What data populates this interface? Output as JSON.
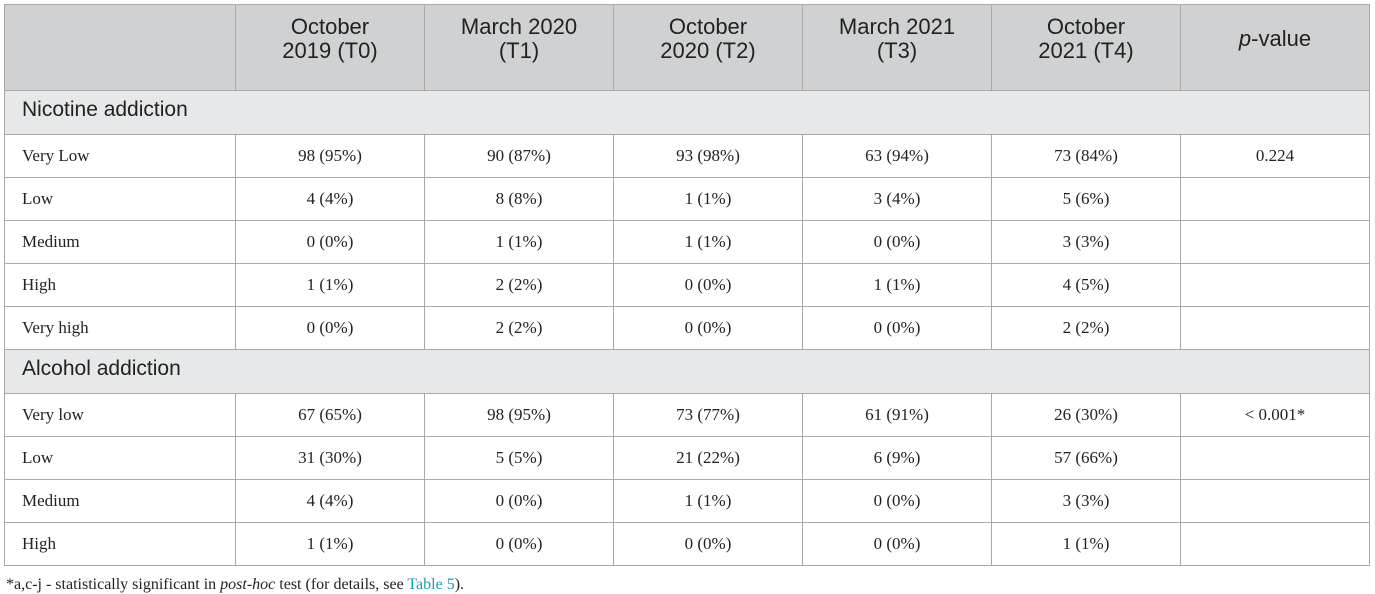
{
  "table": {
    "headers": [
      {
        "line1": "",
        "line2": ""
      },
      {
        "line1": "October",
        "line2": "2019 (T0)"
      },
      {
        "line1": "March 2020",
        "line2": "(T1)"
      },
      {
        "line1": "October",
        "line2": "2020 (T2)"
      },
      {
        "line1": "March 2021",
        "line2": "(T3)"
      },
      {
        "line1": "October",
        "line2": "2021 (T4)"
      }
    ],
    "pvalue_header": {
      "italic": "p",
      "rest": "-value"
    },
    "sections": [
      {
        "title": "Nicotine addiction",
        "rows": [
          {
            "label": "Very Low",
            "values": [
              "98 (95%)",
              "90 (87%)",
              "93 (98%)",
              "63 (94%)",
              "73 (84%)"
            ],
            "p": "0.224"
          },
          {
            "label": "Low",
            "values": [
              "4 (4%)",
              "8 (8%)",
              "1 (1%)",
              "3 (4%)",
              "5 (6%)"
            ],
            "p": ""
          },
          {
            "label": "Medium",
            "values": [
              "0 (0%)",
              "1 (1%)",
              "1 (1%)",
              "0 (0%)",
              "3 (3%)"
            ],
            "p": ""
          },
          {
            "label": "High",
            "values": [
              "1 (1%)",
              "2 (2%)",
              "0 (0%)",
              "1 (1%)",
              "4 (5%)"
            ],
            "p": ""
          },
          {
            "label": "Very high",
            "values": [
              "0 (0%)",
              "2 (2%)",
              "0 (0%)",
              "0 (0%)",
              "2 (2%)"
            ],
            "p": ""
          }
        ]
      },
      {
        "title": "Alcohol addiction",
        "rows": [
          {
            "label": "Very low",
            "values": [
              "67 (65%)",
              "98 (95%)",
              "73 (77%)",
              "61 (91%)",
              "26 (30%)"
            ],
            "p": "< 0.001*"
          },
          {
            "label": "Low",
            "values": [
              "31 (30%)",
              "5 (5%)",
              "21 (22%)",
              "6 (9%)",
              "57 (66%)"
            ],
            "p": ""
          },
          {
            "label": "Medium",
            "values": [
              "4 (4%)",
              "0 (0%)",
              "1 (1%)",
              "0 (0%)",
              "3 (3%)"
            ],
            "p": ""
          },
          {
            "label": "High",
            "values": [
              "1 (1%)",
              "0 (0%)",
              "0 (0%)",
              "0 (0%)",
              "1 (1%)"
            ],
            "p": ""
          }
        ]
      }
    ]
  },
  "footnote": {
    "prefix": "*a,c-j - statistically significant in ",
    "italic": "post-hoc",
    "middle": " test (for details, see ",
    "link": "Table 5",
    "suffix": ")."
  }
}
